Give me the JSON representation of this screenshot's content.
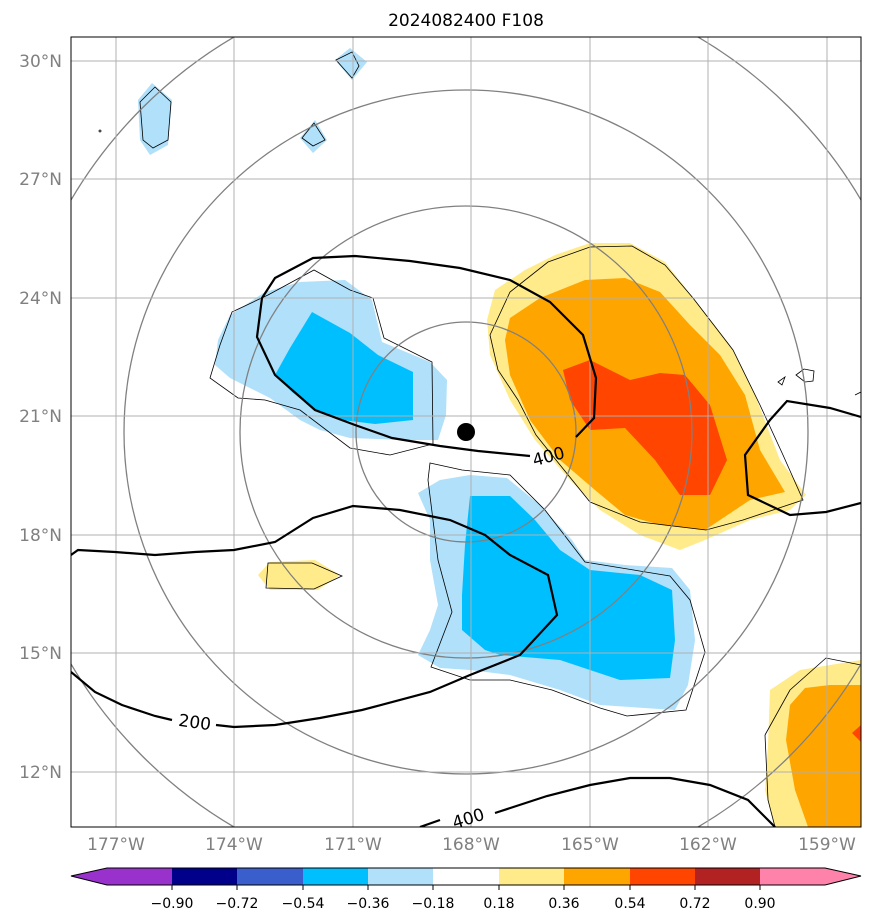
{
  "title": "2024082400 F108",
  "map": {
    "lat_labels": [
      "30°N",
      "27°N",
      "24°N",
      "21°N",
      "18°N",
      "15°N",
      "12°N"
    ],
    "lon_labels": [
      "177°W",
      "174°W",
      "171°W",
      "168°W",
      "165°W",
      "162°W",
      "159°W"
    ],
    "contour_labels": [
      "400",
      "200",
      "400"
    ]
  },
  "colorbar": {
    "tick_labels": [
      "−0.90",
      "−0.72",
      "−0.54",
      "−0.36",
      "−0.18",
      "0.18",
      "0.36",
      "0.54",
      "0.72",
      "0.90"
    ],
    "colors": [
      "#9932cc",
      "#00008b",
      "#3a5fcd",
      "#00bfff",
      "#b0e0fa",
      "#ffffff",
      "#ffeb8a",
      "#ffa500",
      "#ff4500",
      "#b22222",
      "#ff82ab"
    ]
  },
  "colors": {
    "lightblue": "#b0e0fa",
    "blue": "#00bfff",
    "yellow": "#ffeb8a",
    "orange": "#ffa500",
    "red": "#ff4500",
    "grid": "#b0b0b0",
    "ring": "#808080"
  },
  "center_marker": "storm-center-dot"
}
